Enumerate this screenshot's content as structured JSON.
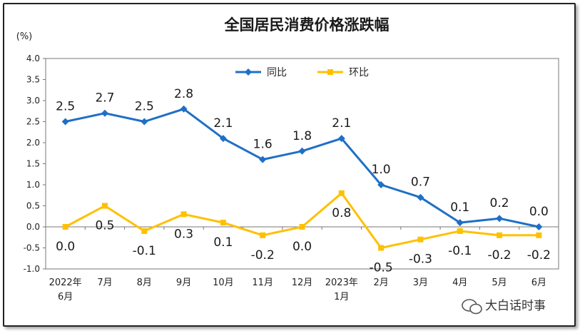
{
  "chart_data": {
    "type": "line",
    "title": "全国居民消费价格涨跌幅",
    "unit_label": "(%)",
    "categories": [
      [
        "2022年",
        "6月"
      ],
      [
        "7月"
      ],
      [
        "8月"
      ],
      [
        "9月"
      ],
      [
        "10月"
      ],
      [
        "11月"
      ],
      [
        "12月"
      ],
      [
        "2023年",
        "1月"
      ],
      [
        "2月"
      ],
      [
        "3月"
      ],
      [
        "4月"
      ],
      [
        "5月"
      ],
      [
        "6月"
      ]
    ],
    "series": [
      {
        "name": "同比",
        "color": "#1f6fc6",
        "values": [
          2.5,
          2.7,
          2.5,
          2.8,
          2.1,
          1.6,
          1.8,
          2.1,
          1.0,
          0.7,
          0.1,
          0.2,
          0.0
        ]
      },
      {
        "name": "环比",
        "color": "#ffc000",
        "values": [
          0.0,
          0.5,
          -0.1,
          0.3,
          0.1,
          -0.2,
          0.0,
          0.8,
          -0.5,
          -0.3,
          -0.1,
          -0.2,
          -0.2
        ]
      }
    ],
    "ylim": [
      -1.0,
      4.0
    ],
    "yticks": [
      "4.0",
      "3.5",
      "3.0",
      "2.5",
      "2.0",
      "1.5",
      "1.0",
      "0.5",
      "0.0",
      "-0.5",
      "-1.0"
    ],
    "legend": "top-center",
    "grid": false
  },
  "watermark": {
    "icon": "wechat-icon",
    "text": "大白话时事"
  }
}
